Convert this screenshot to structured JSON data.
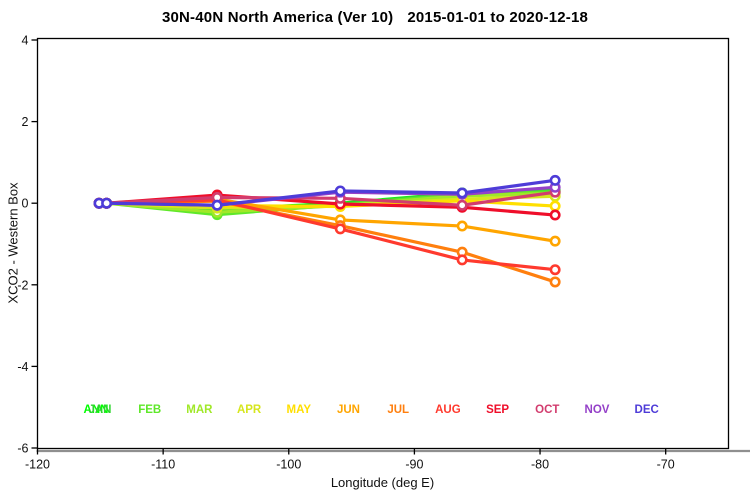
{
  "title": {
    "region": "30N-40N North America (Ver 10)",
    "dates": "2015-01-01 to 2020-12-18"
  },
  "axes": {
    "xlabel": "Longitude (deg E)",
    "ylabel": "XCO2 - Western Box",
    "xticks": [
      -120,
      -110,
      -100,
      -90,
      -80,
      -70
    ],
    "yticks": [
      -6,
      -4,
      -2,
      0,
      2,
      4
    ],
    "xlim": [
      -120,
      -65
    ],
    "ylim": [
      -6,
      4
    ],
    "grid": false
  },
  "chart_data": {
    "type": "line",
    "title": "30N-40N North America (Ver 10)   2015-01-01 to 2020-12-18",
    "xlabel": "Longitude (deg E)",
    "ylabel": "XCO2 - Western Box",
    "x": [
      -115.1,
      -114.5,
      -105.7,
      -95.9,
      -86.2,
      -78.8
    ],
    "legend_position": "bottom-inside",
    "series": [
      {
        "name": "ANN",
        "color": "#00FF00",
        "values": [
          0,
          0,
          -0.15,
          0.0,
          0.25,
          0.3
        ]
      },
      {
        "name": "JAN",
        "color": "#2FD52F",
        "values": [
          0,
          0,
          -0.18,
          -0.02,
          0.25,
          0.33
        ]
      },
      {
        "name": "FEB",
        "color": "#5FE82A",
        "values": [
          0,
          0,
          -0.28,
          -0.04,
          0.22,
          0.28
        ]
      },
      {
        "name": "MAR",
        "color": "#A0E828",
        "values": [
          0,
          0,
          -0.22,
          -0.06,
          0.18,
          0.24
        ]
      },
      {
        "name": "APR",
        "color": "#D6E61E",
        "values": [
          0,
          0,
          -0.12,
          -0.06,
          0.1,
          0.17
        ]
      },
      {
        "name": "MAY",
        "color": "#FFDF00",
        "values": [
          0,
          0,
          -0.06,
          -0.08,
          0.06,
          -0.07
        ]
      },
      {
        "name": "JUN",
        "color": "#FFA500",
        "values": [
          0,
          0,
          0.1,
          -0.41,
          -0.56,
          -0.93
        ]
      },
      {
        "name": "JUL",
        "color": "#FF7F0E",
        "values": [
          0,
          0,
          0.05,
          -0.55,
          -1.2,
          -1.93
        ]
      },
      {
        "name": "AUG",
        "color": "#FF3A2E",
        "values": [
          0,
          0,
          0.08,
          -0.63,
          -1.39,
          -1.63
        ]
      },
      {
        "name": "SEP",
        "color": "#EF0E2A",
        "values": [
          0,
          0,
          0.2,
          -0.02,
          -0.1,
          -0.29
        ]
      },
      {
        "name": "OCT",
        "color": "#D23C6E",
        "values": [
          0,
          0,
          0.14,
          0.12,
          -0.05,
          0.27
        ]
      },
      {
        "name": "NOV",
        "color": "#9440C8",
        "values": [
          0,
          0,
          -0.05,
          0.27,
          0.22,
          0.39
        ]
      },
      {
        "name": "DEC",
        "color": "#4E3CD8",
        "values": [
          0,
          0,
          -0.05,
          0.3,
          0.25,
          0.56
        ]
      }
    ]
  }
}
